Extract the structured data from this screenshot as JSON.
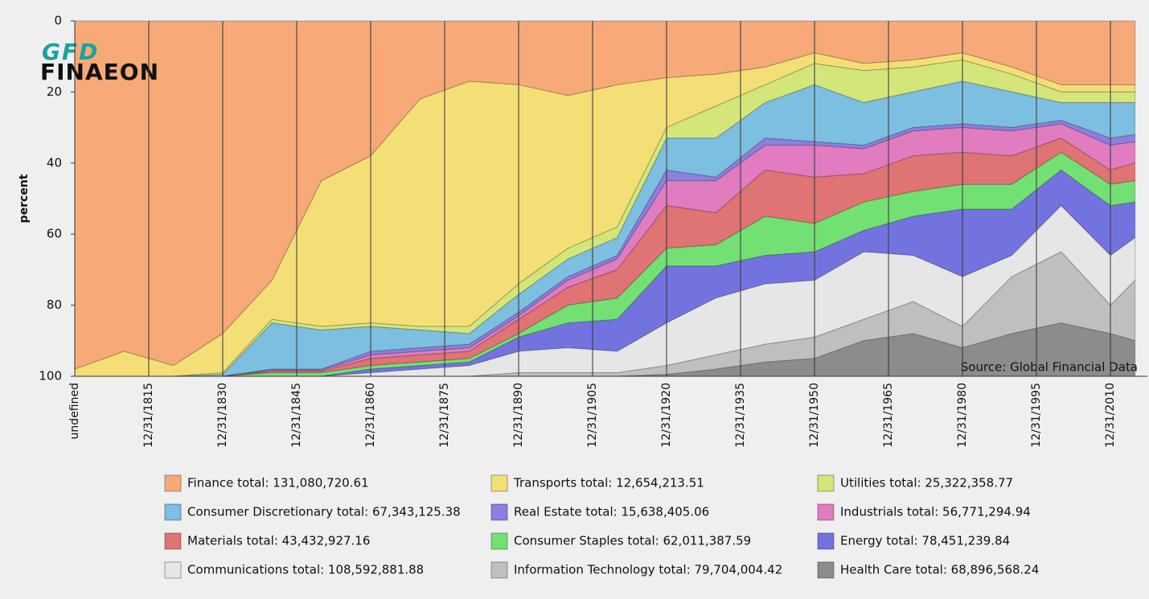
{
  "chart_data": {
    "type": "stacked_area",
    "y_label": "percent",
    "annotation": "Source: Global Financial Data",
    "logo": {
      "top": "GFD",
      "bottom": "FINAEON"
    },
    "x": [
      "12/31/1800",
      "12/31/1810",
      "12/31/1820",
      "12/31/1830",
      "12/31/1840",
      "12/31/1850",
      "12/31/1860",
      "12/31/1870",
      "12/31/1880",
      "12/31/1890",
      "12/31/1900",
      "12/31/1910",
      "12/31/1920",
      "12/31/1930",
      "12/31/1940",
      "12/31/1950",
      "12/31/1960",
      "12/31/1970",
      "12/31/1980",
      "12/31/1990",
      "12/31/2000",
      "12/31/2010",
      "12/31/2015"
    ],
    "xlim": [
      "12/31/1800",
      "06/30/2018"
    ],
    "xticks": [
      {
        "value": "12/31/1800",
        "label": "undefined"
      },
      "12/31/1815",
      "12/31/1830",
      "12/31/1845",
      "12/31/1860",
      "12/31/1875",
      "12/31/1890",
      "12/31/1905",
      "12/31/1920",
      "12/31/1935",
      "12/31/1950",
      "12/31/1965",
      "12/31/1980",
      "12/31/1995",
      "12/31/2010"
    ],
    "ylim": [
      0,
      100
    ],
    "yticks": [
      0,
      20,
      40,
      60,
      80,
      100
    ],
    "y_inverted": true,
    "series": [
      {
        "name": "Finance total: 131,080,720.61",
        "color": "#f7a978",
        "values": [
          98,
          93,
          97,
          88,
          73,
          45,
          38,
          22,
          17,
          18,
          21,
          18,
          16,
          15,
          13,
          9,
          12,
          11,
          9,
          13,
          18,
          18,
          18
        ]
      },
      {
        "name": "Transports total: 12,654,213.51",
        "color": "#f4df76",
        "values": [
          2,
          7,
          3,
          11,
          11,
          41,
          47,
          64,
          69,
          56,
          43,
          40,
          14,
          9,
          5,
          3,
          2,
          2,
          2,
          2,
          2,
          2,
          2
        ]
      },
      {
        "name": "Utilities total: 25,322,358.77",
        "color": "#d4e67a",
        "values": [
          0,
          0,
          0,
          0.5,
          1,
          1,
          1,
          1,
          2,
          3,
          3,
          3,
          3,
          9,
          5,
          6,
          9,
          7,
          6,
          5,
          3,
          3,
          3
        ]
      },
      {
        "name": "Consumer Discretionary total: 67,343,125.38",
        "color": "#7cbfe0",
        "values": [
          0,
          0,
          0,
          0.5,
          13,
          11,
          7,
          5,
          3,
          5,
          5,
          5,
          9,
          11,
          10,
          16,
          12,
          10,
          12,
          10,
          5,
          10,
          9
        ]
      },
      {
        "name": "Real Estate total: 15,638,405.06",
        "color": "#8c7fe0",
        "values": [
          0,
          0,
          0,
          0,
          0.3,
          0.3,
          1,
          1,
          1,
          1,
          1,
          1,
          3,
          1,
          2,
          1,
          1,
          1,
          1,
          1,
          1,
          2,
          2
        ]
      },
      {
        "name": "Industrials total: 56,771,294.94",
        "color": "#e07cbf",
        "values": [
          0,
          0,
          0,
          0,
          0.3,
          0.3,
          1,
          1,
          1,
          1,
          2,
          3,
          7,
          9,
          7,
          9,
          7,
          7,
          7,
          7,
          4,
          7,
          6
        ]
      },
      {
        "name": "Materials total: 43,432,927.16",
        "color": "#e07373",
        "values": [
          0,
          0,
          0,
          0,
          0.4,
          0.4,
          2,
          2,
          2,
          4,
          5,
          8,
          12,
          9,
          13,
          13,
          8,
          10,
          9,
          8,
          4,
          4,
          5
        ]
      },
      {
        "name": "Consumer Staples total: 62,011,387.59",
        "color": "#73e073",
        "values": [
          0,
          0,
          0,
          0,
          1,
          1,
          1,
          1,
          1,
          1,
          5,
          6,
          5,
          6,
          11,
          8,
          8,
          7,
          7,
          7,
          5,
          6,
          6
        ]
      },
      {
        "name": "Energy total: 78,451,239.84",
        "color": "#7373e0",
        "values": [
          0,
          0,
          0,
          0,
          0,
          0,
          1,
          1,
          1,
          4,
          7,
          9,
          16,
          9,
          8,
          8,
          6,
          11,
          19,
          13,
          10,
          14,
          10
        ]
      },
      {
        "name": "Communications total: 108,592,881.88",
        "color": "#e6e6e6",
        "values": [
          0,
          0,
          0,
          0,
          0,
          0,
          1,
          2,
          3,
          6,
          7,
          6,
          12,
          16,
          17,
          16,
          19,
          13,
          14,
          6,
          13,
          14,
          12
        ]
      },
      {
        "name": "Information Technology total: 79,704,004.42",
        "color": "#bfbfbf",
        "values": [
          0,
          0,
          0,
          0,
          0,
          0,
          0,
          0,
          0,
          1,
          1,
          1,
          2.5,
          4,
          5,
          6,
          6,
          9,
          6,
          16,
          20,
          8,
          17
        ]
      },
      {
        "name": "Health Care total: 68,896,568.24",
        "color": "#8c8c8c",
        "values": [
          0,
          0,
          0,
          0,
          0,
          0,
          0,
          0,
          0,
          0,
          0,
          0,
          0.5,
          2,
          4,
          5,
          10,
          12,
          8,
          12,
          15,
          12,
          10
        ]
      }
    ]
  }
}
